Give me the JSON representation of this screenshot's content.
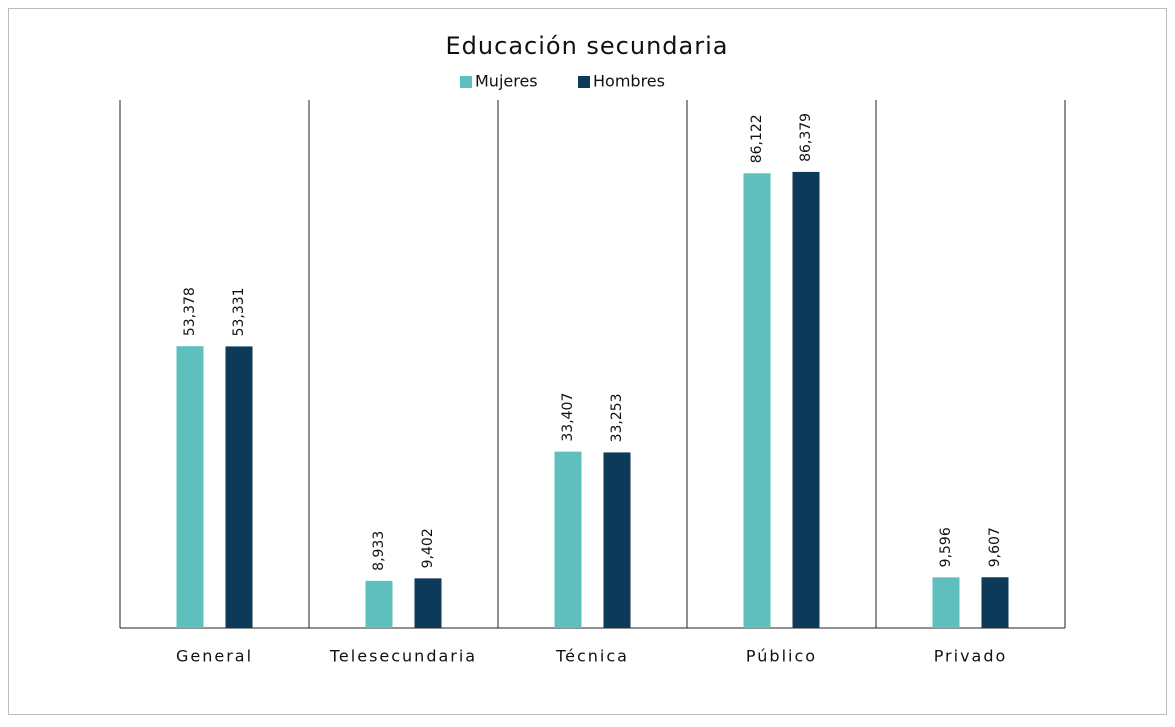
{
  "chart_data": {
    "type": "bar",
    "title": "Educación secundaria",
    "categories": [
      "General",
      "Telesecundaria",
      "Técnica",
      "Público",
      "Privado"
    ],
    "series": [
      {
        "name": "Mujeres",
        "color": "#5fbfbd",
        "values": [
          53378,
          8933,
          33407,
          86122,
          9596
        ],
        "value_labels": [
          "53,378",
          "8,933",
          "33,407",
          "86,122",
          "9,596"
        ]
      },
      {
        "name": "Hombres",
        "color": "#0e3a5a",
        "values": [
          53331,
          9402,
          33253,
          86379,
          9607
        ],
        "value_labels": [
          "53,331",
          "9,402",
          "33,253",
          "86,379",
          "9,607"
        ]
      }
    ],
    "ylim": [
      0,
      100000
    ],
    "legend": "top"
  }
}
